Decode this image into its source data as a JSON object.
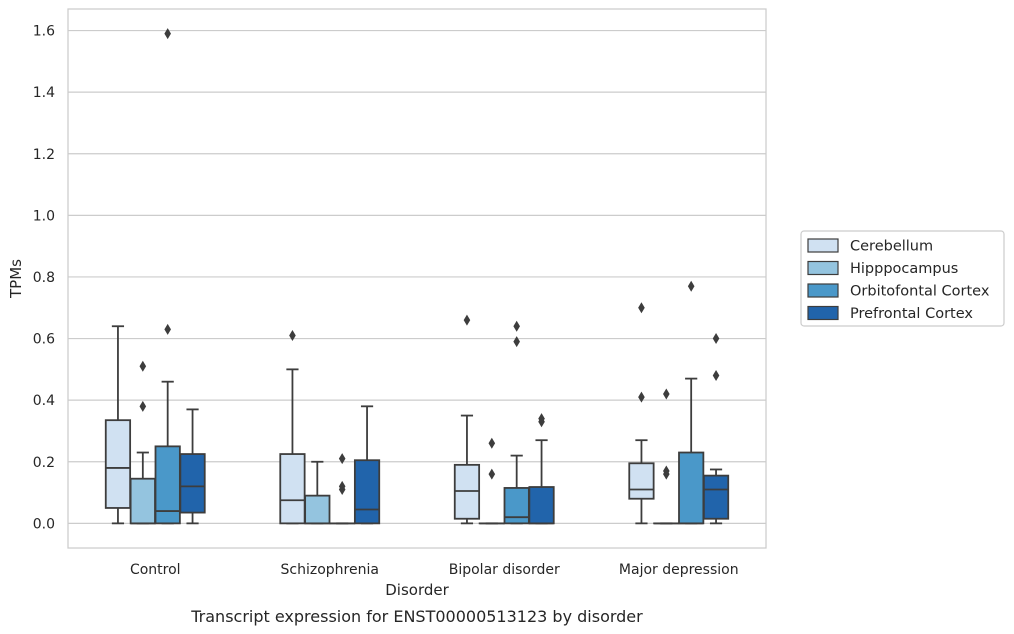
{
  "chart_data": {
    "type": "box",
    "caption": "Transcript expression for ENST00000513123 by disorder",
    "xlabel": "Disorder",
    "ylabel": "TPMs",
    "ylim": [
      -0.08,
      1.67
    ],
    "yticks": [
      "0.0",
      "0.2",
      "0.4",
      "0.6",
      "0.8",
      "1.0",
      "1.2",
      "1.4",
      "1.6"
    ],
    "grid": "horizontal",
    "legend_position": "right",
    "categories": [
      "Control",
      "Schizophrenia",
      "Bipolar disorder",
      "Major depression"
    ],
    "series": [
      {
        "name": "Cerebellum",
        "color": "#d0e1f2",
        "boxes": [
          {
            "min": 0.0,
            "q1": 0.05,
            "median": 0.18,
            "q3": 0.335,
            "max": 0.64,
            "outliers": []
          },
          {
            "min": 0.0,
            "q1": 0.0,
            "median": 0.075,
            "q3": 0.225,
            "max": 0.5,
            "outliers": [
              0.61
            ]
          },
          {
            "min": 0.0,
            "q1": 0.015,
            "median": 0.105,
            "q3": 0.19,
            "max": 0.35,
            "outliers": [
              0.66
            ]
          },
          {
            "min": 0.0,
            "q1": 0.08,
            "median": 0.11,
            "q3": 0.195,
            "max": 0.27,
            "outliers": [
              0.41,
              0.7
            ]
          }
        ]
      },
      {
        "name": "Hipppocampus",
        "color": "#94c4df",
        "boxes": [
          {
            "min": 0.0,
            "q1": 0.0,
            "median": 0.0,
            "q3": 0.145,
            "max": 0.23,
            "outliers": [
              0.38,
              0.51
            ]
          },
          {
            "min": 0.0,
            "q1": 0.0,
            "median": 0.0,
            "q3": 0.09,
            "max": 0.2,
            "outliers": []
          },
          {
            "min": 0.0,
            "q1": 0.0,
            "median": 0.0,
            "q3": 0.0,
            "max": 0.0,
            "outliers": [
              0.16,
              0.26
            ]
          },
          {
            "min": 0.0,
            "q1": 0.0,
            "median": 0.0,
            "q3": 0.0,
            "max": 0.0,
            "outliers": [
              0.16,
              0.17,
              0.42
            ]
          }
        ]
      },
      {
        "name": "Orbitofontal Cortex",
        "color": "#4a98c9",
        "boxes": [
          {
            "min": 0.0,
            "q1": 0.0,
            "median": 0.04,
            "q3": 0.25,
            "max": 0.46,
            "outliers": [
              0.63,
              1.59
            ]
          },
          {
            "min": 0.0,
            "q1": 0.0,
            "median": 0.0,
            "q3": 0.0,
            "max": 0.0,
            "outliers": [
              0.11,
              0.12,
              0.21
            ]
          },
          {
            "min": 0.0,
            "q1": 0.0,
            "median": 0.02,
            "q3": 0.115,
            "max": 0.22,
            "outliers": [
              0.59,
              0.64
            ]
          },
          {
            "min": 0.0,
            "q1": 0.0,
            "median": 0.0,
            "q3": 0.23,
            "max": 0.47,
            "outliers": [
              0.77
            ]
          }
        ]
      },
      {
        "name": "Prefrontal Cortex",
        "color": "#2164ab",
        "boxes": [
          {
            "min": 0.0,
            "q1": 0.035,
            "median": 0.12,
            "q3": 0.225,
            "max": 0.37,
            "outliers": []
          },
          {
            "min": 0.0,
            "q1": 0.0,
            "median": 0.045,
            "q3": 0.205,
            "max": 0.38,
            "outliers": []
          },
          {
            "min": 0.0,
            "q1": 0.0,
            "median": 0.0,
            "q3": 0.118,
            "max": 0.27,
            "outliers": [
              0.33,
              0.34
            ]
          },
          {
            "min": 0.0,
            "q1": 0.015,
            "median": 0.11,
            "q3": 0.155,
            "max": 0.175,
            "outliers": [
              0.48,
              0.6
            ]
          }
        ]
      }
    ]
  }
}
